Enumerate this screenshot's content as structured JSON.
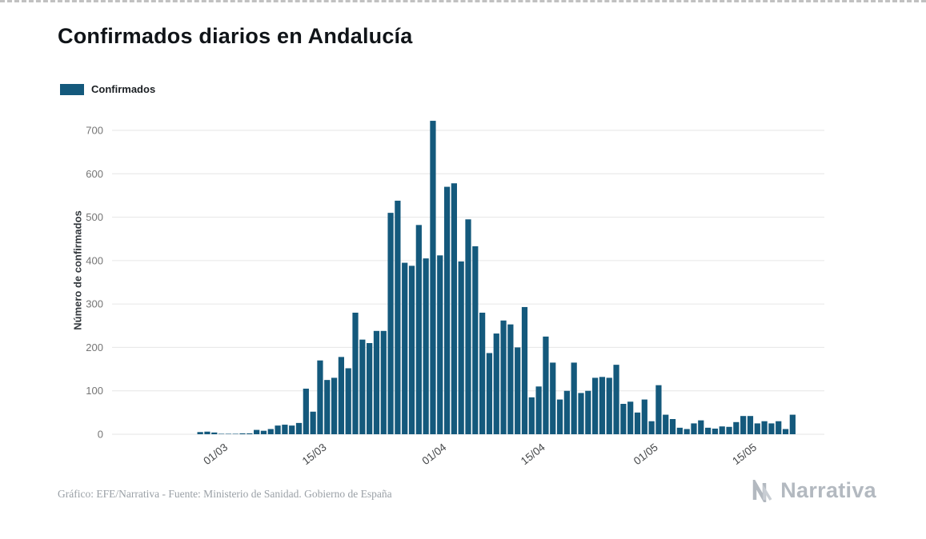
{
  "page": {
    "title": "Confirmados diarios en Andalucía"
  },
  "legend": {
    "label": "Confirmados"
  },
  "footer": {
    "credit": "Gráfico: EFE/Narrativa - Fuente: Ministerio de Sanidad. Gobierno de España",
    "brand": "Narrativa"
  },
  "chart_data": {
    "type": "bar",
    "title": "Confirmados diarios en Andalucía",
    "xlabel": "",
    "ylabel": "Número de confirmados",
    "ylim": [
      0,
      700
    ],
    "ytick_step": 100,
    "grid": true,
    "legend_position": "top-left",
    "series_name": "Confirmados",
    "bar_color": "#14597c",
    "grid_color": "#e6e6e6",
    "ytick_color": "#757575",
    "xtick_color": "#46484a",
    "xticks": [
      "01/03",
      "15/03",
      "01/04",
      "15/04",
      "01/05",
      "15/05"
    ],
    "dates": [
      "14/02",
      "15/02",
      "16/02",
      "17/02",
      "18/02",
      "19/02",
      "20/02",
      "21/02",
      "22/02",
      "23/02",
      "24/02",
      "25/02",
      "26/02",
      "27/02",
      "28/02",
      "29/02",
      "01/03",
      "02/03",
      "03/03",
      "04/03",
      "05/03",
      "06/03",
      "07/03",
      "08/03",
      "09/03",
      "10/03",
      "11/03",
      "12/03",
      "13/03",
      "14/03",
      "15/03",
      "16/03",
      "17/03",
      "18/03",
      "19/03",
      "20/03",
      "21/03",
      "22/03",
      "23/03",
      "24/03",
      "25/03",
      "26/03",
      "27/03",
      "28/03",
      "29/03",
      "30/03",
      "31/03",
      "01/04",
      "02/04",
      "03/04",
      "04/04",
      "05/04",
      "06/04",
      "07/04",
      "08/04",
      "09/04",
      "10/04",
      "11/04",
      "12/04",
      "13/04",
      "14/04",
      "15/04",
      "16/04",
      "17/04",
      "18/04",
      "19/04",
      "20/04",
      "21/04",
      "22/04",
      "23/04",
      "24/04",
      "25/04",
      "26/04",
      "27/04",
      "28/04",
      "29/04",
      "30/04",
      "01/05",
      "02/05",
      "03/05",
      "04/05",
      "05/05",
      "06/05",
      "07/05",
      "08/05",
      "09/05",
      "10/05",
      "11/05",
      "12/05",
      "13/05",
      "14/05",
      "15/05",
      "16/05",
      "17/05",
      "18/05",
      "19/05",
      "20/05",
      "21/05",
      "22/05",
      "23/05",
      "24/05"
    ],
    "values": [
      0,
      0,
      0,
      0,
      0,
      0,
      0,
      0,
      0,
      0,
      0,
      0,
      5,
      6,
      4,
      1,
      1,
      1,
      2,
      2,
      10,
      8,
      12,
      20,
      22,
      20,
      26,
      105,
      52,
      170,
      125,
      130,
      178,
      152,
      280,
      218,
      210,
      238,
      238,
      510,
      538,
      395,
      388,
      482,
      405,
      722,
      412,
      570,
      578,
      398,
      495,
      433,
      280,
      187,
      232,
      262,
      253,
      200,
      293,
      85,
      110,
      225,
      165,
      80,
      100,
      165,
      95,
      100,
      130,
      132,
      130,
      160,
      70,
      75,
      50,
      80,
      30,
      113,
      45,
      35,
      15,
      12,
      25,
      32,
      15,
      13,
      18,
      17,
      28,
      42,
      42,
      25,
      30,
      25,
      30,
      12,
      45,
      0,
      0,
      0,
      0
    ]
  }
}
